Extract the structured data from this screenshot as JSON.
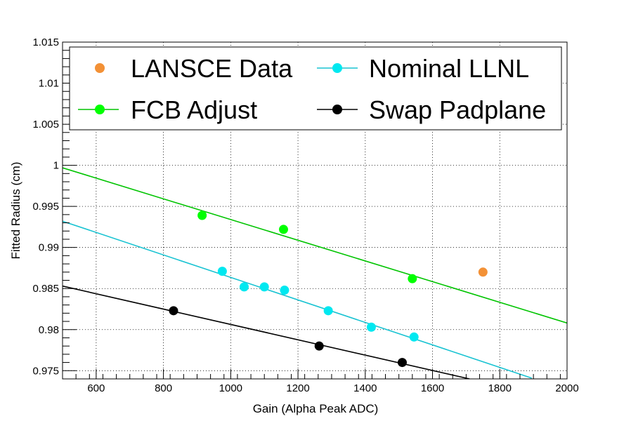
{
  "chart_data": {
    "type": "scatter",
    "title": "",
    "xlabel": "Gain (Alpha Peak ADC)",
    "ylabel": "Fitted Radius (cm)",
    "xlim": [
      500,
      2000
    ],
    "ylim": [
      0.974,
      1.015
    ],
    "grid": true,
    "x_ticks": [
      600,
      800,
      1000,
      1200,
      1400,
      1600,
      1800,
      2000
    ],
    "x_tick_labels": [
      "600",
      "800",
      "1000",
      "1200",
      "1400",
      "1600",
      "1800",
      "2000"
    ],
    "y_ticks": [
      0.975,
      0.98,
      0.985,
      0.99,
      0.995,
      1.0,
      1.005,
      1.01,
      1.015
    ],
    "y_tick_labels": [
      "0.975",
      "0.98",
      "0.985",
      "0.99",
      "0.995",
      "1",
      "1.005",
      "1.01",
      "1.015"
    ],
    "legend_position": "top",
    "series": [
      {
        "name": "LANSCE Data",
        "color": "#f39136",
        "points": [
          [
            1750,
            0.987
          ]
        ],
        "fit": null
      },
      {
        "name": "Nominal LLNL",
        "color": "#00e8f0",
        "line_color": "#19c3d2",
        "points": [
          [
            975,
            0.9871
          ],
          [
            1040,
            0.9852
          ],
          [
            1100,
            0.9852
          ],
          [
            1160,
            0.9848
          ],
          [
            1290,
            0.9823
          ],
          [
            1418,
            0.9803
          ],
          [
            1545,
            0.9791
          ]
        ],
        "fit": {
          "x": [
            500,
            1895
          ],
          "y": [
            0.9932,
            0.9741
          ]
        }
      },
      {
        "name": "FCB Adjust",
        "color": "#00ff00",
        "line_color": "#00c400",
        "points": [
          [
            915,
            0.9939
          ],
          [
            1157,
            0.9922
          ],
          [
            1540,
            0.9862
          ]
        ],
        "fit": {
          "x": [
            500,
            2000
          ],
          "y": [
            0.9997,
            0.9808
          ]
        }
      },
      {
        "name": "Swap Padplane",
        "color": "#000000",
        "line_color": "#000000",
        "points": [
          [
            830,
            0.9823
          ],
          [
            1263,
            0.978
          ],
          [
            1510,
            0.976
          ]
        ],
        "fit": {
          "x": [
            500,
            1710
          ],
          "y": [
            0.9853,
            0.974
          ]
        }
      }
    ]
  },
  "legend": {
    "lansce": "LANSCE Data",
    "nominal": "Nominal LLNL",
    "fcb": "FCB Adjust",
    "swap": "Swap Padplane"
  }
}
